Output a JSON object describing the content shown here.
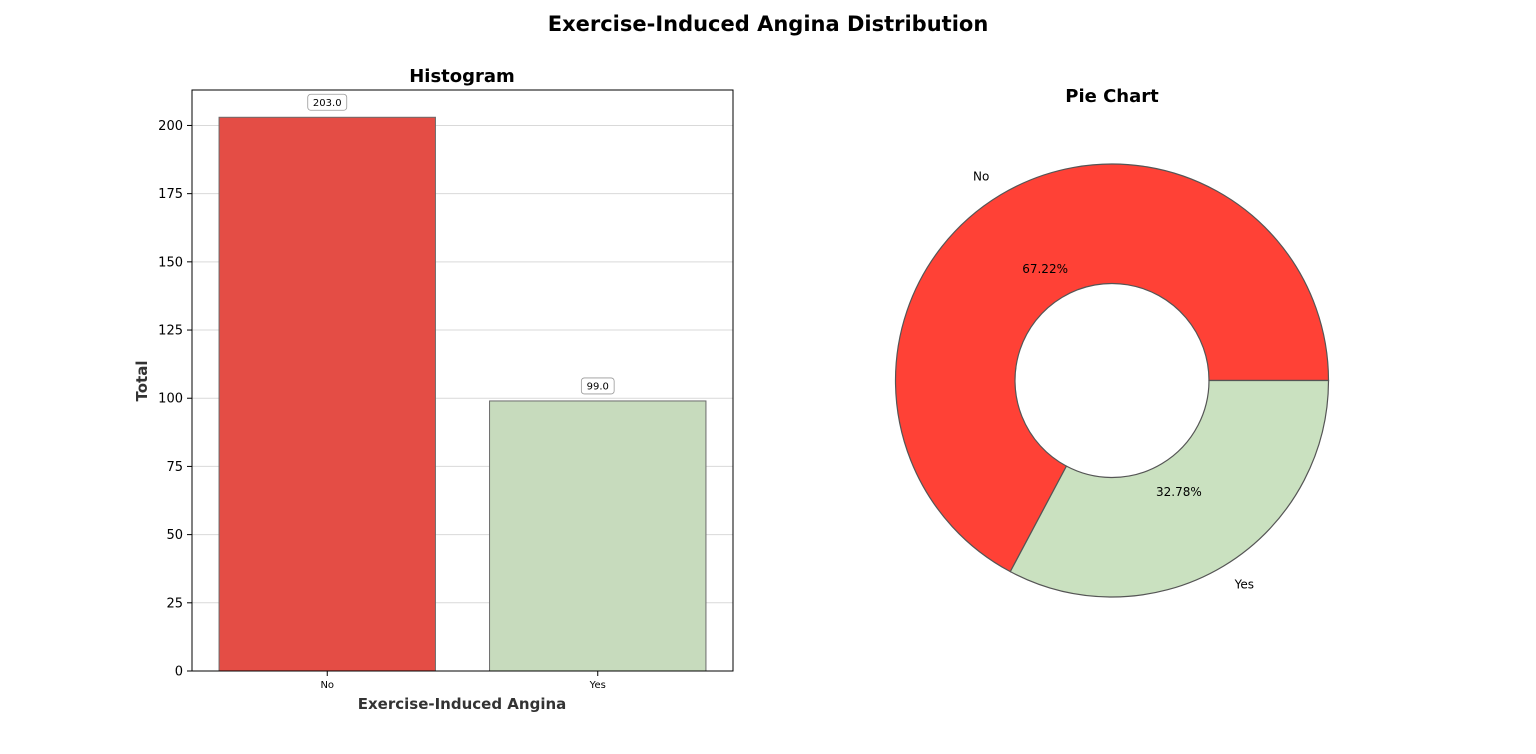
{
  "figure": {
    "title": "Exercise-Induced Angina Distribution"
  },
  "colors": {
    "no_bar": "#e44d45",
    "yes_bar": "#c7dbbd",
    "no_slice": "#ff4136",
    "yes_slice": "#cae1c0",
    "edge": "#555555",
    "grid": "#d9d9d9"
  },
  "chart_data": [
    {
      "type": "bar",
      "title": "Histogram",
      "xlabel": "Exercise-Induced Angina",
      "ylabel": "Total",
      "categories": [
        "No",
        "Yes"
      ],
      "values": [
        203,
        99
      ],
      "data_labels": [
        "203.0",
        "99.0"
      ],
      "ylim": [
        0,
        213
      ],
      "yticks": [
        0,
        25,
        50,
        75,
        100,
        125,
        150,
        175,
        200
      ],
      "grid": "y"
    },
    {
      "type": "pie",
      "title": "Pie Chart",
      "donut": true,
      "labels": [
        "No",
        "Yes"
      ],
      "values": [
        203,
        99
      ],
      "percent_labels": [
        "67.22%",
        "32.78%"
      ]
    }
  ]
}
